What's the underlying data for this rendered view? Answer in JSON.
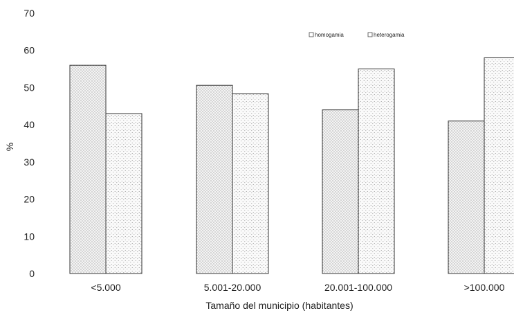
{
  "chart_data": {
    "type": "bar",
    "categories": [
      "<5.000",
      "5.001-20.000",
      "20.001-100.000",
      ">100.000"
    ],
    "series": [
      {
        "name": "homogamia",
        "values": [
          56,
          50.6,
          44,
          41
        ]
      },
      {
        "name": "heterogamia",
        "values": [
          43,
          48.3,
          55,
          58
        ]
      }
    ],
    "xlabel": "Tamaño del municipio (habitantes)",
    "ylabel": "%",
    "ylim": [
      0,
      70
    ],
    "yticks": [
      0,
      10,
      20,
      30,
      40,
      50,
      60,
      70
    ],
    "legend_position": "top-right",
    "grid": false
  }
}
